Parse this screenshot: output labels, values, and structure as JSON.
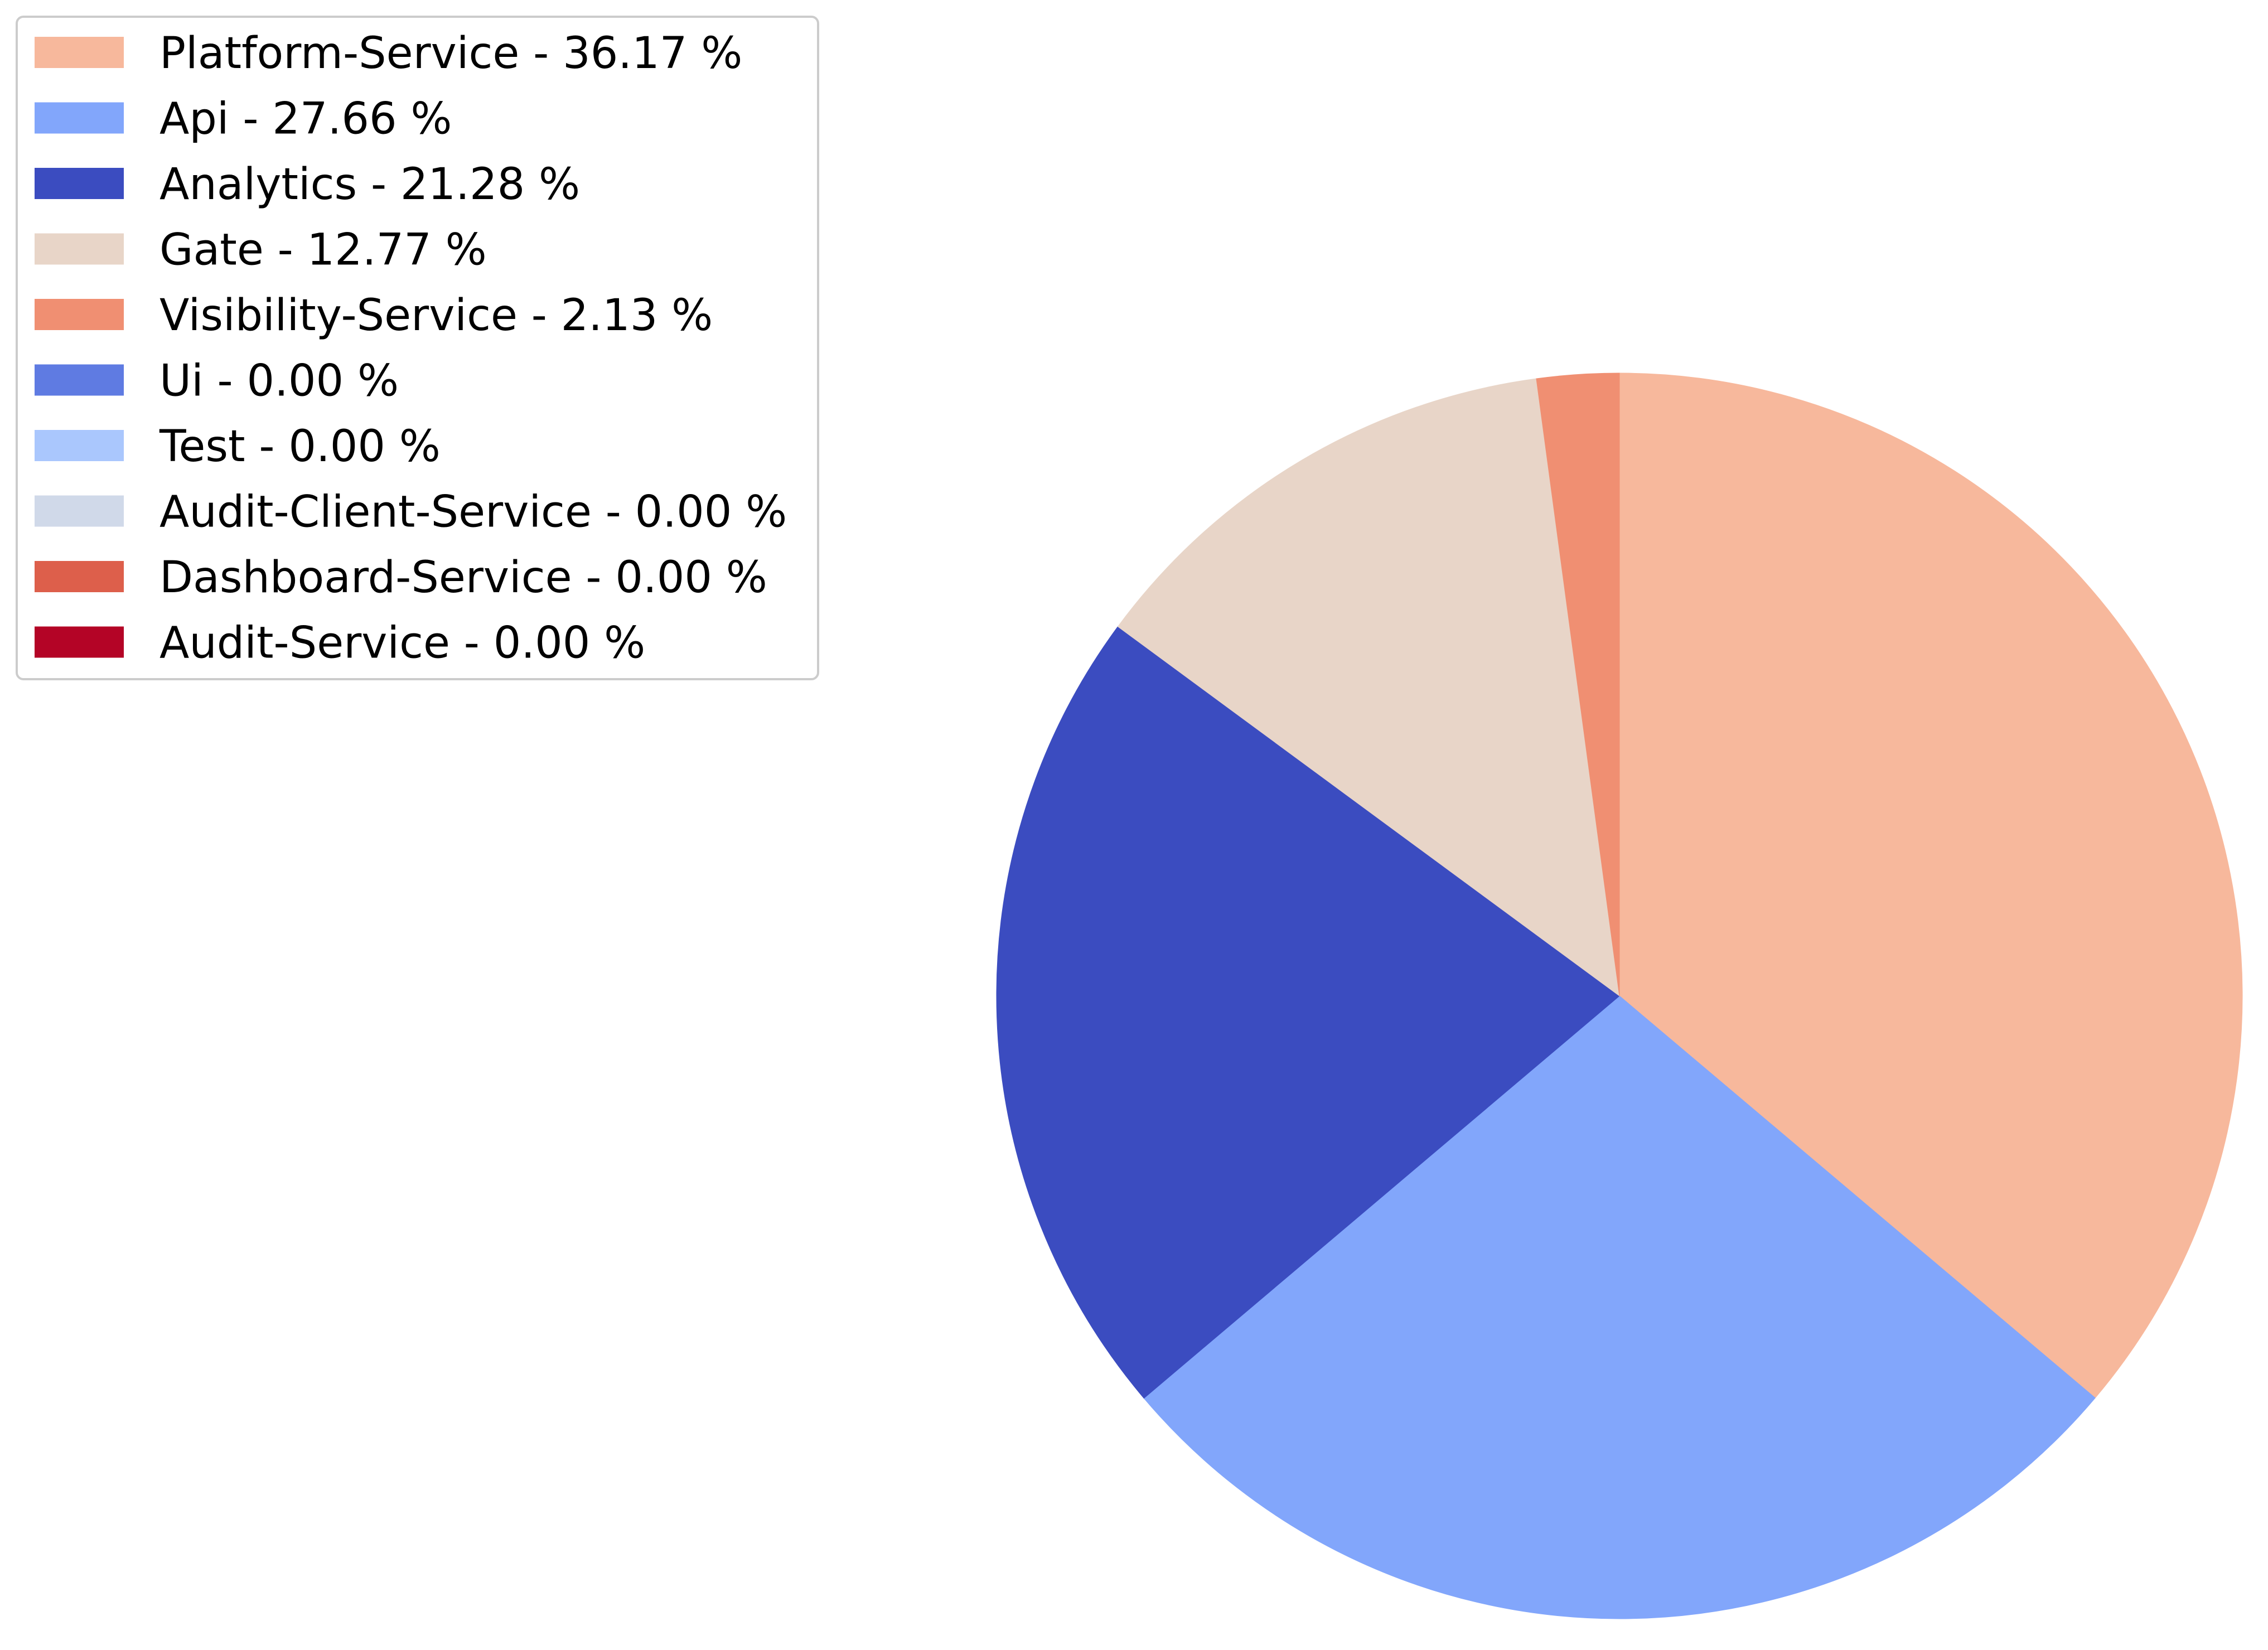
{
  "chart_data": {
    "type": "pie",
    "legend_position": "top-left",
    "start_angle_deg": 90,
    "direction": "counterclockwise",
    "slices": [
      {
        "label": "Platform-Service - 36.17 %",
        "name": "Platform-Service",
        "value": 36.17,
        "color": "#f7b89c"
      },
      {
        "label": "Api - 27.66 %",
        "name": "Api",
        "value": 27.66,
        "color": "#82a6fb"
      },
      {
        "label": "Analytics - 21.28 %",
        "name": "Analytics",
        "value": 21.28,
        "color": "#3b4cc0"
      },
      {
        "label": "Gate - 12.77 %",
        "name": "Gate",
        "value": 12.77,
        "color": "#e8d5c8"
      },
      {
        "label": "Visibility-Service - 2.13 %",
        "name": "Visibility-Service",
        "value": 2.13,
        "color": "#f08f72"
      },
      {
        "label": "Ui - 0.00 %",
        "name": "Ui",
        "value": 0.0,
        "color": "#5f7be2"
      },
      {
        "label": "Test - 0.00 %",
        "name": "Test",
        "value": 0.0,
        "color": "#aac7fd"
      },
      {
        "label": "Audit-Client-Service - 0.00 %",
        "name": "Audit-Client-Service",
        "value": 0.0,
        "color": "#d0d9e9"
      },
      {
        "label": "Dashboard-Service - 0.00 %",
        "name": "Dashboard-Service",
        "value": 0.0,
        "color": "#dd5f4b"
      },
      {
        "label": "Audit-Service - 0.00 %",
        "name": "Audit-Service",
        "value": 0.0,
        "color": "#b40426"
      }
    ],
    "draw_order": [
      "Visibility-Service",
      "Analytics",
      "Api",
      "Gate",
      "Platform-Service"
    ]
  }
}
